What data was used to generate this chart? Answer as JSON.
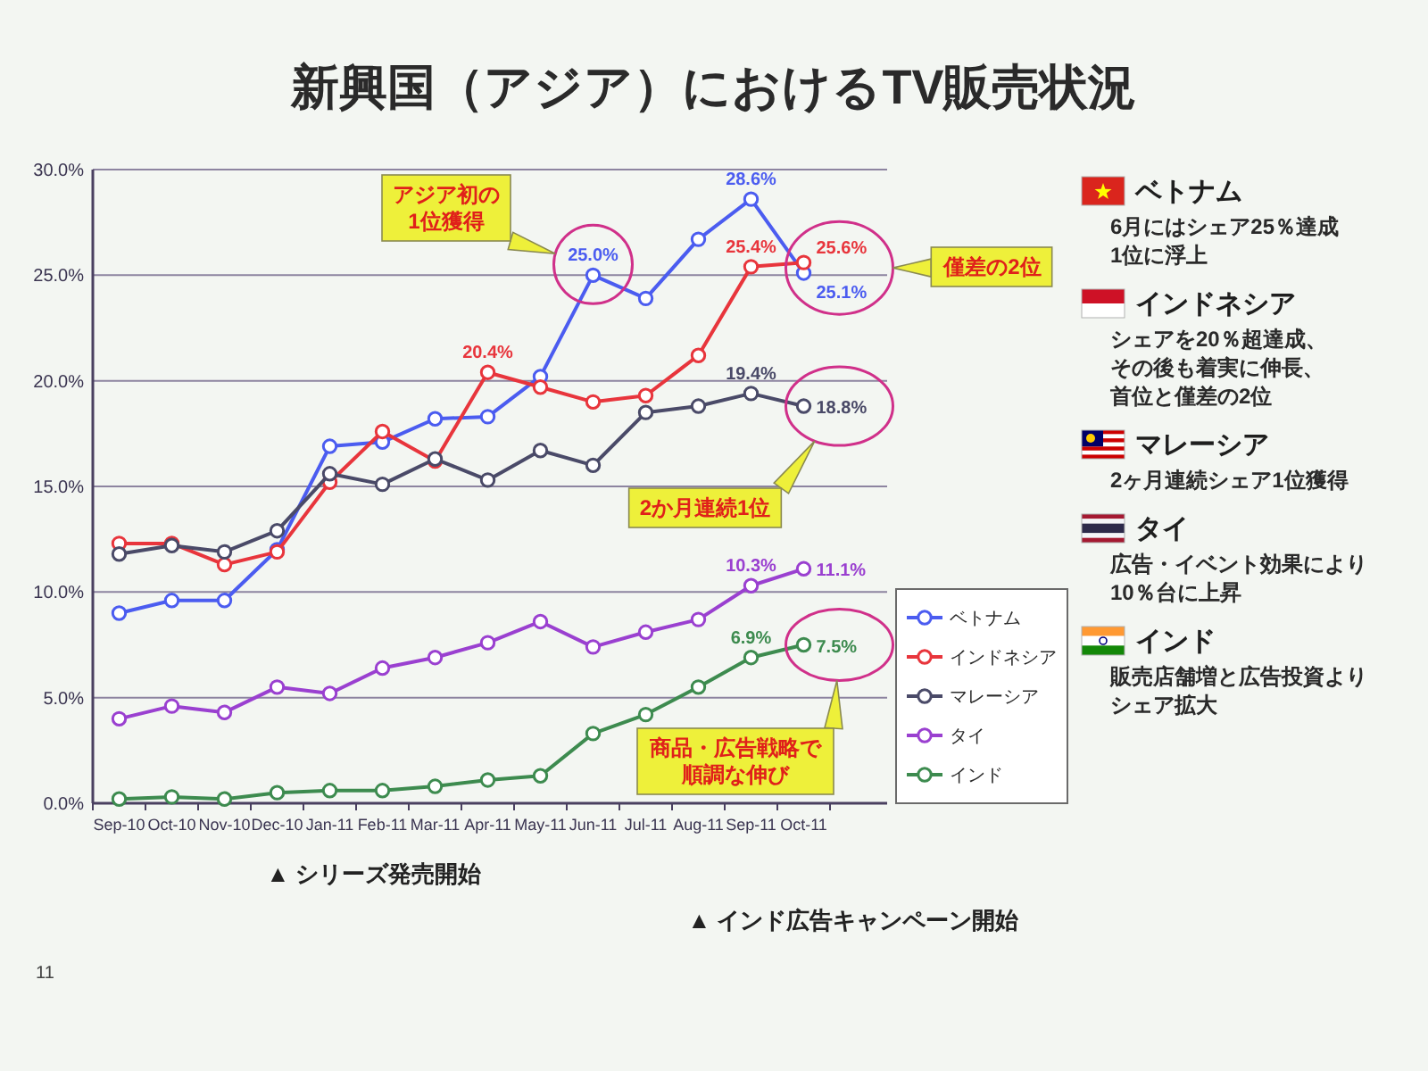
{
  "chart_data": {
    "type": "line",
    "title": "新興国（アジア）におけるTV販売状況",
    "categories": [
      "Sep-10",
      "Oct-10",
      "Nov-10",
      "Dec-10",
      "Jan-11",
      "Feb-11",
      "Mar-11",
      "Apr-11",
      "May-11",
      "Jun-11",
      "Jul-11",
      "Aug-11",
      "Sep-11",
      "Oct-11"
    ],
    "series": [
      {
        "name": "ベトナム",
        "color": "#4b5cf0",
        "values": [
          9.0,
          9.6,
          9.6,
          12.0,
          16.9,
          17.1,
          18.2,
          18.3,
          20.2,
          25.0,
          23.9,
          26.7,
          28.6,
          25.1
        ],
        "value_labels": [
          null,
          null,
          null,
          null,
          null,
          null,
          null,
          null,
          null,
          "25.0%",
          null,
          null,
          "28.6%",
          "25.1%"
        ]
      },
      {
        "name": "インドネシア",
        "color": "#e8353c",
        "values": [
          12.3,
          12.3,
          11.3,
          11.9,
          15.2,
          17.6,
          16.2,
          20.4,
          19.7,
          19.0,
          19.3,
          21.2,
          25.4,
          25.6
        ],
        "value_labels": [
          null,
          null,
          null,
          null,
          null,
          null,
          null,
          "20.4%",
          null,
          null,
          null,
          null,
          "25.4%",
          "25.6%"
        ]
      },
      {
        "name": "マレーシア",
        "color": "#4a4a68",
        "values": [
          11.8,
          12.2,
          11.9,
          12.9,
          15.6,
          15.1,
          16.3,
          15.3,
          16.7,
          16.0,
          18.5,
          18.8,
          19.4,
          18.8
        ],
        "value_labels": [
          null,
          null,
          null,
          null,
          null,
          null,
          null,
          null,
          null,
          null,
          null,
          null,
          "19.4%",
          "18.8%"
        ]
      },
      {
        "name": "タイ",
        "color": "#9a40d0",
        "values": [
          4.0,
          4.6,
          4.3,
          5.5,
          5.2,
          6.4,
          6.9,
          7.6,
          8.6,
          7.4,
          8.1,
          8.7,
          10.3,
          11.1
        ],
        "value_labels": [
          null,
          null,
          null,
          null,
          null,
          null,
          null,
          null,
          null,
          null,
          null,
          null,
          "10.3%",
          "11.1%"
        ]
      },
      {
        "name": "インド",
        "color": "#3d8b4f",
        "values": [
          0.2,
          0.3,
          0.2,
          0.5,
          0.6,
          0.6,
          0.8,
          1.1,
          1.3,
          3.3,
          4.2,
          5.5,
          6.9,
          7.5
        ],
        "value_labels": [
          null,
          null,
          null,
          null,
          null,
          null,
          null,
          null,
          null,
          null,
          null,
          null,
          "6.9%",
          "7.5%"
        ]
      }
    ],
    "ylim": [
      0,
      30
    ],
    "yticks": [
      {
        "value": 0,
        "label": "0.0%"
      },
      {
        "value": 5,
        "label": "5.0%"
      },
      {
        "value": 10,
        "label": "10.0%"
      },
      {
        "value": 15,
        "label": "15.0%"
      },
      {
        "value": 20,
        "label": "20.0%"
      },
      {
        "value": 25,
        "label": "25.0%"
      },
      {
        "value": 30,
        "label": "30.0%"
      }
    ],
    "grid": "y",
    "legend": "bottom right",
    "marker": "circle",
    "line_style": "solid",
    "annotations": [
      "アジア初の1位獲得",
      "僅差の2位",
      "2か月連続1位",
      "商品・広告戦略で順調な伸び",
      "▲ シリーズ発売開始",
      "▲ インド広告キャンペーン開始",
      "6月にはシェア25％達成1位に浮上",
      "シェアを20％超達成、その後も着実に伸長、首位と僅差の2位",
      "2ヶ月連続シェア1位獲得",
      "広告・イベント効果により10％台に上昇",
      "販売店舗増と広告投資よりシェア拡大",
      "11"
    ]
  }
}
